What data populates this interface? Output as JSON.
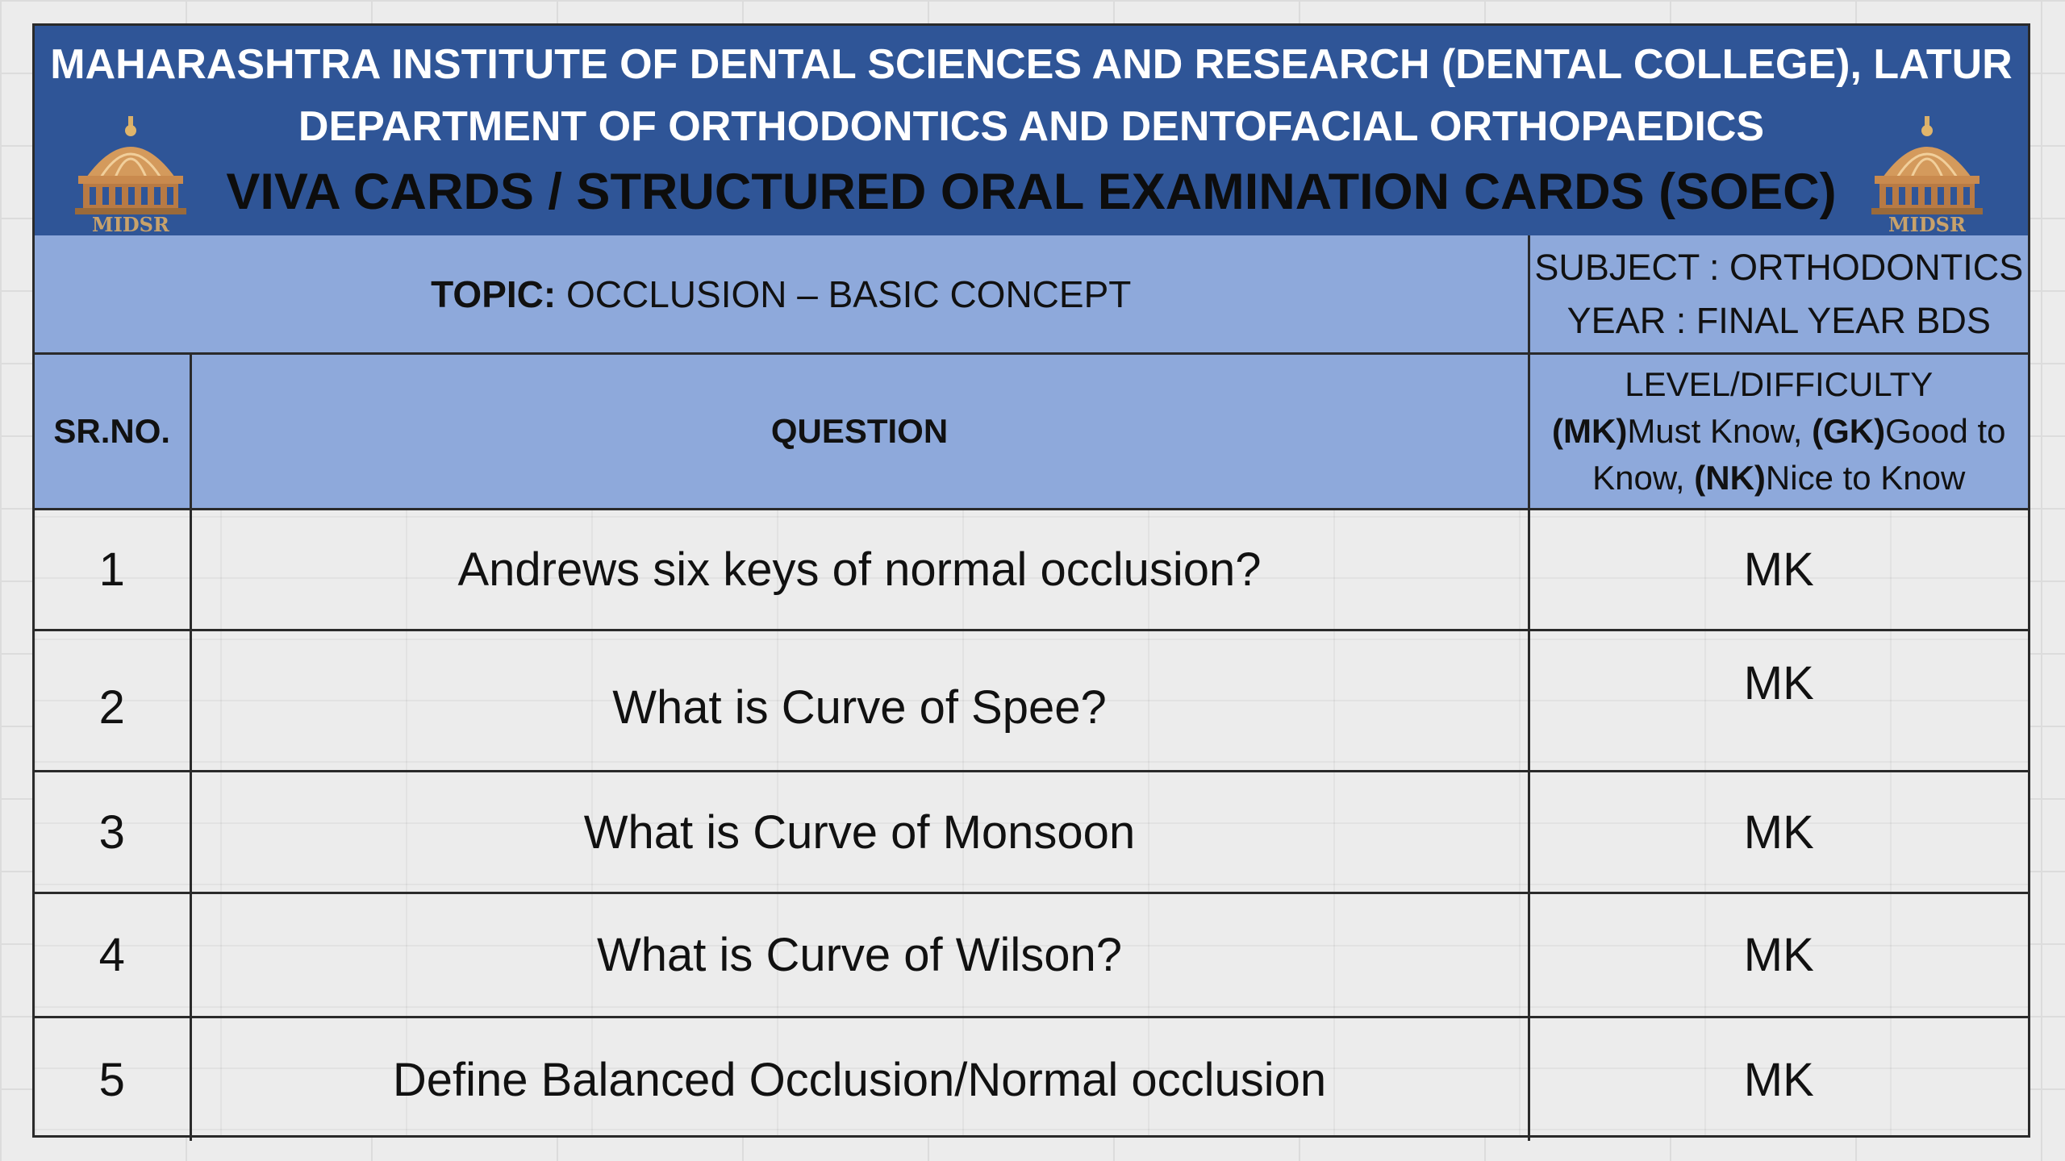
{
  "banner": {
    "line1": "MAHARASHTRA INSTITUTE OF DENTAL SCIENCES AND RESEARCH (DENTAL COLLEGE), LATUR",
    "line2": "DEPARTMENT OF ORTHODONTICS AND DENTOFACIAL ORTHOPAEDICS",
    "line3": "VIVA CARDS / STRUCTURED ORAL EXAMINATION CARDS (SOEC)",
    "logo_text": "MIDSR",
    "colors": {
      "banner_bg": "#2f5597",
      "title_dark": "#0d0d0d",
      "header_blue": "#8ea9db"
    }
  },
  "info": {
    "topic_label": "TOPIC:",
    "topic_value": "OCCLUSION – BASIC CONCEPT",
    "subject": "SUBJECT : ORTHODONTICS",
    "year": "YEAR : FINAL YEAR BDS"
  },
  "header": {
    "srno": "SR.NO.",
    "question": "QUESTION",
    "level_title": "LEVEL/DIFFICULTY",
    "mk_code": "(MK)",
    "mk_text": "Must Know, ",
    "gk_code": "(GK)",
    "gk_text": "Good to Know, ",
    "nk_code": "(NK)",
    "nk_text": "Nice to Know"
  },
  "rows": [
    {
      "no": "1",
      "question": "Andrews six keys of normal occlusion?",
      "level": "MK"
    },
    {
      "no": "2",
      "question": "What is Curve of Spee?",
      "level": "MK"
    },
    {
      "no": "3",
      "question": "What is Curve of Monsoon",
      "level": "MK"
    },
    {
      "no": "4",
      "question": "What is Curve of Wilson?",
      "level": "MK"
    },
    {
      "no": "5",
      "question": "Define Balanced Occlusion/Normal occlusion",
      "level": "MK"
    }
  ]
}
